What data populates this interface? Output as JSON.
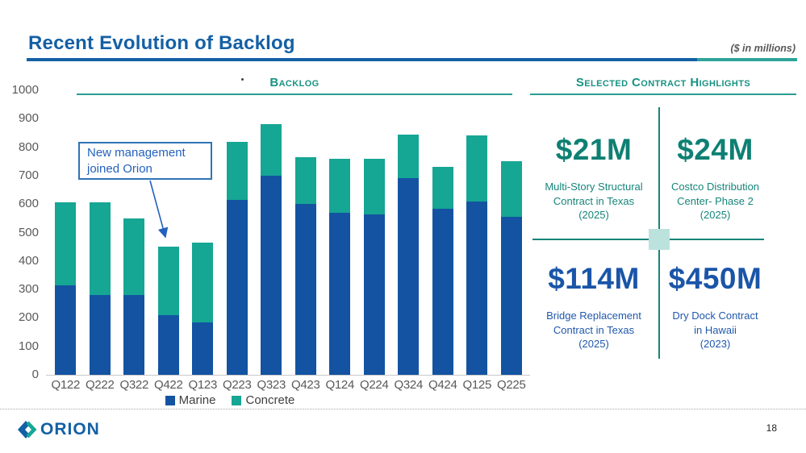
{
  "header": {
    "title": "Recent Evolution of Backlog",
    "units_note": "($ in millions)"
  },
  "chart_data": {
    "type": "bar",
    "stacked": true,
    "title": "Backlog",
    "categories": [
      "Q122",
      "Q222",
      "Q322",
      "Q422",
      "Q123",
      "Q223",
      "Q323",
      "Q423",
      "Q124",
      "Q224",
      "Q324",
      "Q424",
      "Q125",
      "Q225"
    ],
    "series": [
      {
        "name": "Marine",
        "color": "#1353A2",
        "values": [
          315,
          280,
          280,
          210,
          185,
          615,
          700,
          600,
          570,
          565,
          690,
          585,
          610,
          555
        ]
      },
      {
        "name": "Concrete",
        "color": "#16A694",
        "values": [
          290,
          325,
          270,
          240,
          280,
          205,
          180,
          165,
          190,
          195,
          155,
          145,
          230,
          195
        ]
      }
    ],
    "totals": [
      605,
      605,
      550,
      450,
      465,
      820,
      880,
      765,
      760,
      760,
      845,
      730,
      840,
      750
    ],
    "xlabel": "",
    "ylabel": "",
    "ylim": [
      0,
      1000
    ],
    "y_ticks": [
      1000,
      900,
      800,
      700,
      600,
      500,
      400,
      300,
      200,
      100,
      0
    ],
    "grid": false,
    "legend_position": "bottom",
    "annotation": {
      "text": "New management joined Orion",
      "target_category": "Q422"
    }
  },
  "highlights": {
    "title": "Selected Contract Highlights",
    "items": [
      {
        "amount": "$21M",
        "line1": "Multi-Story Structural",
        "line2": "Contract in Texas",
        "year": "(2025)",
        "amount_color": "#0E8073",
        "desc_color": "#16857A"
      },
      {
        "amount": "$24M",
        "line1": "Costco Distribution",
        "line2": "Center- Phase 2",
        "year": "(2025)",
        "amount_color": "#0E8073",
        "desc_color": "#16857A"
      },
      {
        "amount": "$114M",
        "line1": "Bridge Replacement",
        "line2": "Contract in Texas",
        "year": "(2025)",
        "amount_color": "#1A55A8",
        "desc_color": "#2158AC"
      },
      {
        "amount": "$450M",
        "line1": "Dry Dock Contract",
        "line2": "in Hawaii",
        "year": "(2023)",
        "amount_color": "#1A55A8",
        "desc_color": "#2158AC"
      }
    ]
  },
  "footer": {
    "logo_text": "ORION",
    "page_number": "18"
  },
  "colors": {
    "title_blue": "#1460A5",
    "heading_teal": "#189383",
    "divider_teal": "#17847A",
    "center_square": "#BCE2DE",
    "annotation_blue": "#2361BD",
    "axis_label_gray": "#595959"
  }
}
